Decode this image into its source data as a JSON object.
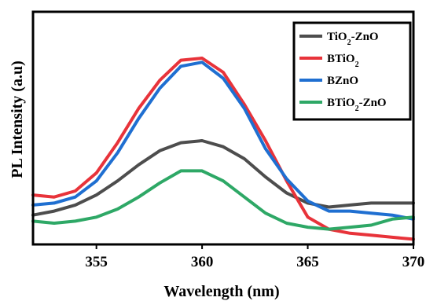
{
  "chart_data": {
    "type": "line",
    "title": "",
    "xlabel": "Wavelength (nm)",
    "ylabel": "PL Intensity (a.u)",
    "xlim": [
      352,
      370
    ],
    "xticks": [
      355,
      360,
      365,
      370
    ],
    "yticks_shown": false,
    "legend_position": "top-right",
    "grid": false,
    "series": [
      {
        "name": "TiO2-ZnO",
        "color": "#4d4d4d",
        "x": [
          352,
          353,
          354,
          355,
          356,
          357,
          358,
          359,
          360,
          361,
          362,
          363,
          364,
          365,
          366,
          367,
          368,
          369,
          370
        ],
        "y": [
          0.13,
          0.15,
          0.18,
          0.23,
          0.3,
          0.38,
          0.45,
          0.49,
          0.5,
          0.47,
          0.41,
          0.32,
          0.24,
          0.19,
          0.17,
          0.18,
          0.19,
          0.19,
          0.19
        ]
      },
      {
        "name": "BTiO2",
        "color": "#e8333a",
        "x": [
          352,
          353,
          354,
          355,
          356,
          357,
          358,
          359,
          360,
          361,
          362,
          363,
          364,
          365,
          366,
          367,
          368,
          369,
          370
        ],
        "y": [
          0.23,
          0.22,
          0.25,
          0.34,
          0.49,
          0.66,
          0.8,
          0.9,
          0.91,
          0.84,
          0.68,
          0.5,
          0.3,
          0.12,
          0.06,
          0.04,
          0.03,
          0.02,
          0.01
        ]
      },
      {
        "name": "BZnO",
        "color": "#1f6fd1",
        "x": [
          352,
          353,
          354,
          355,
          356,
          357,
          358,
          359,
          360,
          361,
          362,
          363,
          364,
          365,
          366,
          367,
          368,
          369,
          370
        ],
        "y": [
          0.18,
          0.19,
          0.22,
          0.3,
          0.44,
          0.61,
          0.76,
          0.87,
          0.89,
          0.81,
          0.66,
          0.46,
          0.31,
          0.2,
          0.15,
          0.15,
          0.14,
          0.13,
          0.11
        ]
      },
      {
        "name": "BTiO2-ZnO",
        "color": "#2ea866",
        "x": [
          352,
          353,
          354,
          355,
          356,
          357,
          358,
          359,
          360,
          361,
          362,
          363,
          364,
          365,
          366,
          367,
          368,
          369,
          370
        ],
        "y": [
          0.1,
          0.09,
          0.1,
          0.12,
          0.16,
          0.22,
          0.29,
          0.35,
          0.35,
          0.3,
          0.22,
          0.14,
          0.09,
          0.07,
          0.06,
          0.07,
          0.08,
          0.11,
          0.12
        ]
      }
    ]
  },
  "legend": {
    "items": [
      {
        "main": "TiO",
        "sub": "2",
        "rest": "-ZnO"
      },
      {
        "main": "BTiO",
        "sub": "2",
        "rest": ""
      },
      {
        "main": "BZnO",
        "sub": "",
        "rest": ""
      },
      {
        "main": "BTiO",
        "sub": "2",
        "rest": "-ZnO"
      }
    ]
  }
}
